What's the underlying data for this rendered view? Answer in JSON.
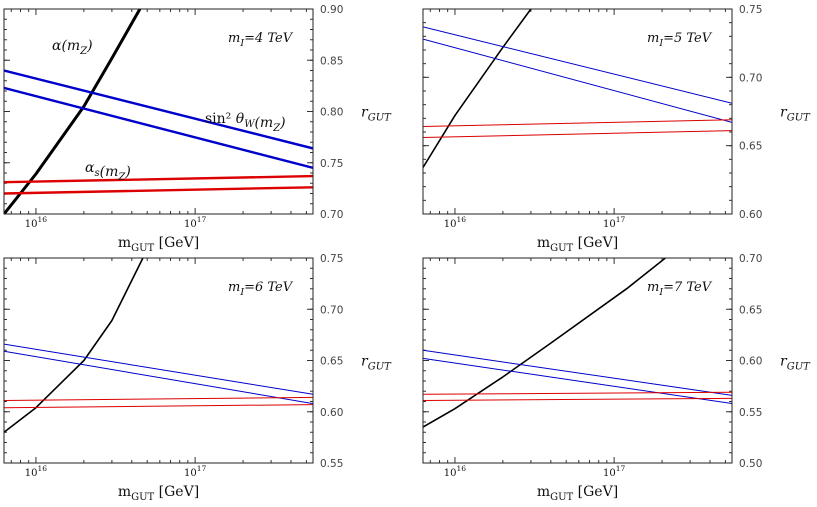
{
  "chart_data": [
    {
      "type": "line",
      "title": "m_I=4 TeV",
      "xlabel": "m_GUT [GeV]",
      "xscale": "log",
      "ylabel_right": "r_GUT",
      "xticks": [
        "10^16",
        "10^17"
      ],
      "ylim": [
        0.7,
        0.9
      ],
      "yticks": [
        "0.70",
        "0.75",
        "0.80",
        "0.85",
        "0.90"
      ],
      "annotations": [
        "α(m_Z)",
        "sin² θ_W(m_Z)",
        "α_s(m_Z)"
      ],
      "line_width": "thick",
      "series": [
        {
          "name": "α(m_Z)",
          "color": "#000000",
          "x": [
            6300000000000000.0,
            1e+16,
            2e+16,
            3e+16,
            4.5e+16
          ],
          "values": [
            0.7,
            0.739,
            0.805,
            0.852,
            0.9
          ]
        },
        {
          "color": "#0000cc",
          "x": [
            6300000000000000.0,
            5.5e+17
          ],
          "values": [
            0.84,
            0.764
          ]
        },
        {
          "color": "#0000cc",
          "x": [
            6300000000000000.0,
            5.5e+17
          ],
          "values": [
            0.823,
            0.745
          ]
        },
        {
          "color": "#dd0000",
          "x": [
            6300000000000000.0,
            5.5e+17
          ],
          "values": [
            0.731,
            0.737
          ]
        },
        {
          "color": "#dd0000",
          "x": [
            6300000000000000.0,
            5.5e+17
          ],
          "values": [
            0.72,
            0.726
          ]
        }
      ]
    },
    {
      "type": "line",
      "title": "m_I=5 TeV",
      "xlabel": "m_GUT [GeV]",
      "xscale": "log",
      "ylabel_right": "r_GUT",
      "xticks": [
        "10^16",
        "10^17"
      ],
      "ylim": [
        0.6,
        0.75
      ],
      "yticks": [
        "0.60",
        "0.65",
        "0.70",
        "0.75"
      ],
      "line_width": "thin",
      "series": [
        {
          "color": "#000000",
          "x": [
            6300000000000000.0,
            1e+16,
            2e+16,
            3e+16
          ],
          "values": [
            0.634,
            0.672,
            0.722,
            0.75
          ]
        },
        {
          "color": "#0000cc",
          "x": [
            6300000000000000.0,
            5.5e+17
          ],
          "values": [
            0.737,
            0.681
          ]
        },
        {
          "color": "#0000cc",
          "x": [
            6300000000000000.0,
            5.5e+17
          ],
          "values": [
            0.728,
            0.667
          ]
        },
        {
          "color": "#dd0000",
          "x": [
            6300000000000000.0,
            5.5e+17
          ],
          "values": [
            0.664,
            0.669
          ]
        },
        {
          "color": "#dd0000",
          "x": [
            6300000000000000.0,
            5.5e+17
          ],
          "values": [
            0.656,
            0.661
          ]
        }
      ]
    },
    {
      "type": "line",
      "title": "m_I=6 TeV",
      "xlabel": "m_GUT [GeV]",
      "xscale": "log",
      "ylabel_right": "r_GUT",
      "xticks": [
        "10^16",
        "10^17"
      ],
      "ylim": [
        0.55,
        0.75
      ],
      "yticks": [
        "0.55",
        "0.60",
        "0.65",
        "0.70",
        "0.75"
      ],
      "line_width": "thin",
      "series": [
        {
          "color": "#000000",
          "x": [
            6300000000000000.0,
            1e+16,
            2e+16,
            3e+16,
            4.7e+16
          ],
          "values": [
            0.58,
            0.604,
            0.65,
            0.689,
            0.75
          ]
        },
        {
          "color": "#0000cc",
          "x": [
            6300000000000000.0,
            5.5e+17
          ],
          "values": [
            0.666,
            0.617
          ]
        },
        {
          "color": "#0000cc",
          "x": [
            6300000000000000.0,
            5.5e+17
          ],
          "values": [
            0.659,
            0.608
          ]
        },
        {
          "color": "#dd0000",
          "x": [
            6300000000000000.0,
            5.5e+17
          ],
          "values": [
            0.611,
            0.614
          ]
        },
        {
          "color": "#dd0000",
          "x": [
            6300000000000000.0,
            5.5e+17
          ],
          "values": [
            0.604,
            0.607
          ]
        }
      ]
    },
    {
      "type": "line",
      "title": "m_I=7 TeV",
      "xlabel": "m_GUT [GeV]",
      "xscale": "log",
      "ylabel_right": "r_GUT",
      "xticks": [
        "10^16",
        "10^17"
      ],
      "ylim": [
        0.5,
        0.7
      ],
      "yticks": [
        "0.50",
        "0.55",
        "0.60",
        "0.65",
        "0.70"
      ],
      "line_width": "thin",
      "series": [
        {
          "color": "#000000",
          "x": [
            6300000000000000.0,
            1e+16,
            2e+16,
            4e+16,
            1.2e+17,
            2.1e+17
          ],
          "values": [
            0.535,
            0.553,
            0.584,
            0.617,
            0.67,
            0.7
          ]
        },
        {
          "color": "#0000cc",
          "x": [
            6300000000000000.0,
            5.5e+17
          ],
          "values": [
            0.61,
            0.566
          ]
        },
        {
          "color": "#0000cc",
          "x": [
            6300000000000000.0,
            5.5e+17
          ],
          "values": [
            0.602,
            0.558
          ]
        },
        {
          "color": "#dd0000",
          "x": [
            6300000000000000.0,
            5.5e+17
          ],
          "values": [
            0.567,
            0.569
          ]
        },
        {
          "color": "#dd0000",
          "x": [
            6300000000000000.0,
            5.5e+17
          ],
          "values": [
            0.561,
            0.563
          ]
        }
      ]
    }
  ]
}
